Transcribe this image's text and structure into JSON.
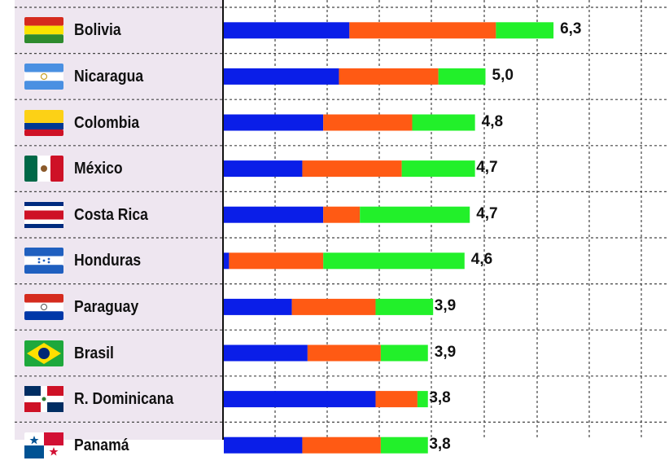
{
  "chart_data": {
    "type": "bar",
    "stacked": true,
    "orientation": "horizontal",
    "grid": true,
    "categories": [
      "Bolivia",
      "Nicaragua",
      "Colombia",
      "México",
      "Costa Rica",
      "Honduras",
      "Paraguay",
      "Brasil",
      "R. Dominicana",
      "Panamá"
    ],
    "value_labels": [
      "6,3",
      "5,0",
      "4,8",
      "4,7",
      "4,7",
      "4,6",
      "3,9",
      "3,9",
      "3,8",
      "3,8"
    ],
    "totals": [
      6.3,
      5.0,
      4.8,
      4.7,
      4.7,
      4.6,
      3.9,
      3.9,
      3.8,
      3.8
    ],
    "series": [
      {
        "color": "#0a1ee8",
        "values": [
          2.4,
          2.2,
          1.9,
          1.5,
          1.9,
          0.1,
          1.3,
          1.6,
          2.9,
          1.5
        ]
      },
      {
        "color": "#ff5a14",
        "values": [
          2.8,
          1.9,
          1.7,
          1.9,
          0.7,
          1.8,
          1.6,
          1.4,
          0.8,
          1.5
        ]
      },
      {
        "color": "#22f02a",
        "values": [
          1.1,
          0.9,
          1.2,
          1.4,
          2.1,
          2.7,
          1.1,
          0.9,
          0.2,
          0.9
        ]
      }
    ],
    "xlim": [
      0,
      8.3
    ]
  },
  "flags": [
    {
      "country": "Bolivia",
      "icon": "bolivia-flag-icon"
    },
    {
      "country": "Nicaragua",
      "icon": "nicaragua-flag-icon"
    },
    {
      "country": "Colombia",
      "icon": "colombia-flag-icon"
    },
    {
      "country": "México",
      "icon": "mexico-flag-icon"
    },
    {
      "country": "Costa Rica",
      "icon": "costa-rica-flag-icon"
    },
    {
      "country": "Honduras",
      "icon": "honduras-flag-icon"
    },
    {
      "country": "Paraguay",
      "icon": "paraguay-flag-icon"
    },
    {
      "country": "Brasil",
      "icon": "brasil-flag-icon"
    },
    {
      "country": "R. Dominicana",
      "icon": "dominican-republic-flag-icon"
    },
    {
      "country": "Panamá",
      "icon": "panama-flag-icon"
    }
  ]
}
